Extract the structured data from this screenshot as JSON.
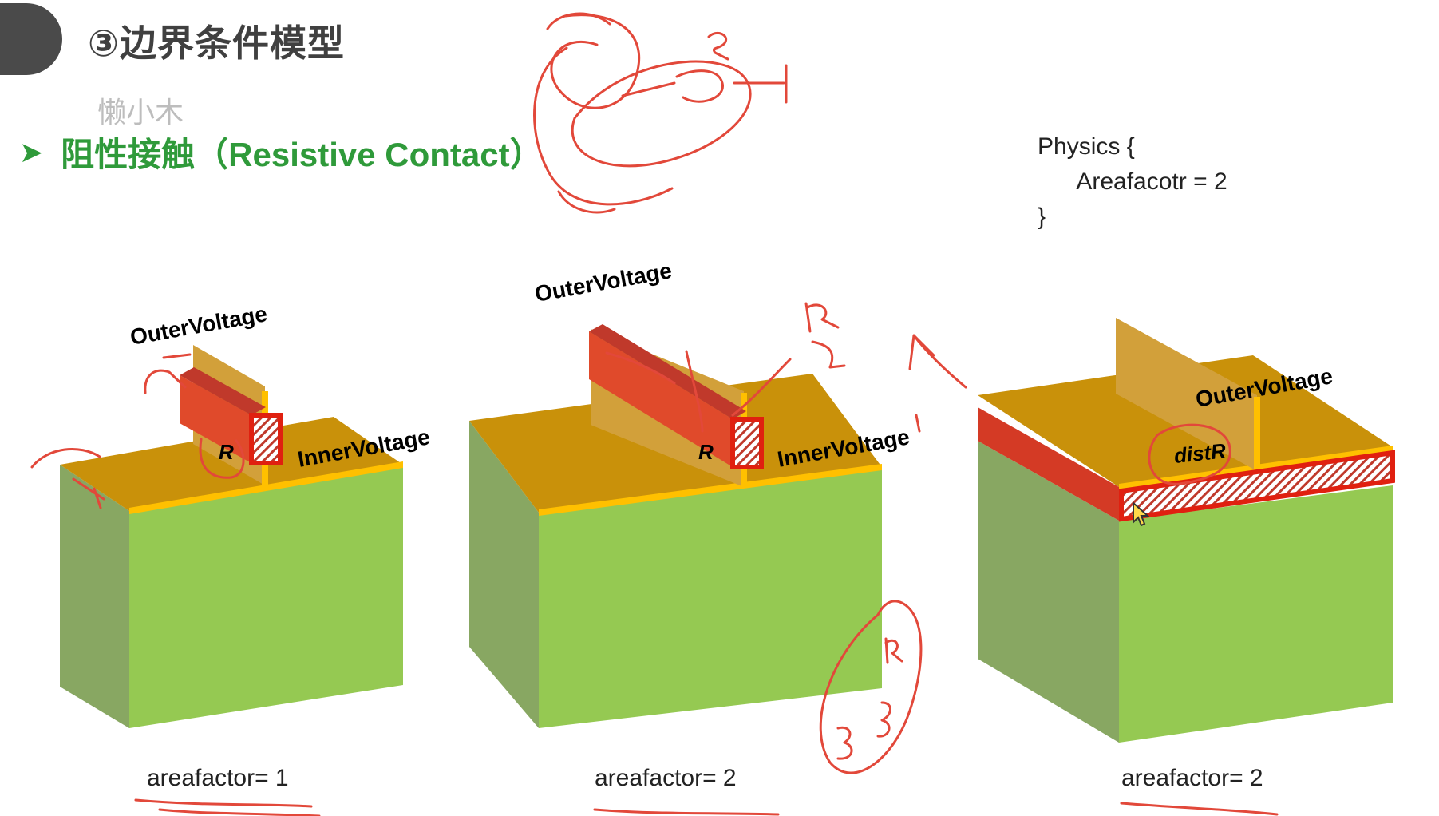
{
  "slide": {
    "title": "③边界条件模型",
    "watermark": "懒小木",
    "bullet": "阻性接触（Resistive Contact）"
  },
  "code": {
    "line1": "Physics {",
    "line2": "      Areafacotr = 2",
    "line3": "}"
  },
  "diagrams": [
    {
      "outer_label": "OuterVoltage",
      "inner_label": "InnerVoltage",
      "resistor_label": "R",
      "caption": "areafactor= 1"
    },
    {
      "outer_label": "OuterVoltage",
      "inner_label": "InnerVoltage",
      "resistor_label": "R",
      "caption": "areafactor= 2"
    },
    {
      "outer_label": "OuterVoltage",
      "resistor_label": "distR",
      "caption": "areafactor= 2"
    }
  ],
  "colors": {
    "title": "#404040",
    "bullet": "#2f9a3a",
    "box_front": "#95c952",
    "box_side": "#88a762",
    "box_top": "#c9910a",
    "contact": "#d43a25",
    "edge": "#ffc000",
    "annotation": "#e2483a"
  }
}
